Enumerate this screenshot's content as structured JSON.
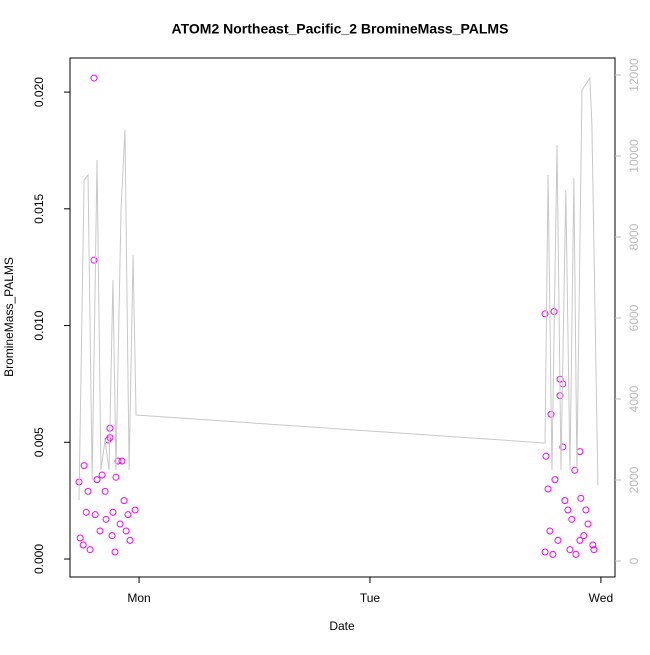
{
  "chart_data": {
    "type": "scatter",
    "title": "ATOM2 Northeast_Pacific_2 BromineMass_PALMS",
    "x_label": "Date",
    "y_label": "BromineMass_PALMS",
    "xlim": [
      -0.299,
      2.061
    ],
    "xticks": [
      {
        "value": 0,
        "label": "Mon"
      },
      {
        "value": 1,
        "label": "Tue"
      },
      {
        "value": 2,
        "label": "Wed"
      }
    ],
    "ylim": [
      -0.00077,
      0.02146
    ],
    "yticks": [
      {
        "value": 0,
        "label": "0.000"
      },
      {
        "value": 0.005,
        "label": "0.005"
      },
      {
        "value": 0.01,
        "label": "0.010"
      },
      {
        "value": 0.015,
        "label": "0.015"
      },
      {
        "value": 0.02,
        "label": "0.020"
      }
    ],
    "y2lim": [
      -395,
      12420
    ],
    "y2ticks": [
      0,
      2000,
      4000,
      6000,
      8000,
      10000,
      12000
    ],
    "series": [
      {
        "type": "scatter",
        "color": "#ff00ff",
        "x": [
          -0.195,
          -0.195,
          -0.238,
          -0.26,
          -0.255,
          -0.242,
          -0.221,
          -0.19,
          -0.182,
          -0.16,
          -0.143,
          -0.134,
          -0.126,
          -0.126,
          -0.113,
          -0.104,
          -0.091,
          -0.074,
          -0.065,
          -0.056,
          -0.039,
          -0.017,
          -0.212,
          -0.169,
          -0.147,
          -0.117,
          -0.082,
          -0.048,
          -0.229,
          -0.1,
          1.758,
          1.797,
          1.762,
          1.784,
          1.823,
          1.835,
          1.823,
          1.835,
          1.909,
          1.887,
          1.771,
          1.801,
          1.844,
          1.866,
          1.892,
          1.758,
          1.779,
          1.814,
          1.935,
          1.965,
          1.97,
          1.913,
          1.944,
          1.857,
          1.909,
          1.792,
          1.874,
          1.926
        ],
        "values": [
          0.0206,
          0.0128,
          0.004,
          0.0033,
          0.0009,
          0.0006,
          0.0029,
          0.0019,
          0.0034,
          0.0036,
          0.0017,
          0.0051,
          0.0056,
          0.0052,
          0.002,
          0.0003,
          0.0042,
          0.0042,
          0.0025,
          0.0012,
          0.0008,
          0.0021,
          0.0004,
          0.0012,
          0.0029,
          0.001,
          0.0015,
          0.0019,
          0.002,
          0.0035,
          0.0105,
          0.0106,
          0.0044,
          0.0062,
          0.0077,
          0.0075,
          0.007,
          0.0048,
          0.0046,
          0.0038,
          0.003,
          0.0034,
          0.0025,
          0.0004,
          0.0002,
          0.0003,
          0.0012,
          0.0008,
          0.0021,
          0.0006,
          0.0004,
          0.0026,
          0.0015,
          0.0021,
          0.0008,
          0.0002,
          0.0017,
          0.001
        ]
      },
      {
        "type": "line",
        "axis": "y2",
        "color": "#c8c8c8",
        "x": [
          -0.26,
          -0.238,
          -0.221,
          -0.203,
          -0.182,
          -0.165,
          -0.147,
          -0.13,
          -0.113,
          -0.1,
          -0.078,
          -0.061,
          -0.043,
          -0.026,
          -0.013,
          1.758,
          1.771,
          1.788,
          1.81,
          1.827,
          1.848,
          1.866,
          1.883,
          1.896,
          1.918,
          1.952,
          1.961,
          1.987
        ],
        "values": [
          1506,
          9407,
          9530,
          2000,
          9900,
          2247,
          2988,
          2247,
          6938,
          2247,
          8667,
          10642,
          2247,
          7556,
          3605,
          2914,
          9530,
          2247,
          10272,
          2247,
          9160,
          2247,
          9457,
          2247,
          11630,
          11926,
          10765,
          1877
        ]
      }
    ]
  }
}
